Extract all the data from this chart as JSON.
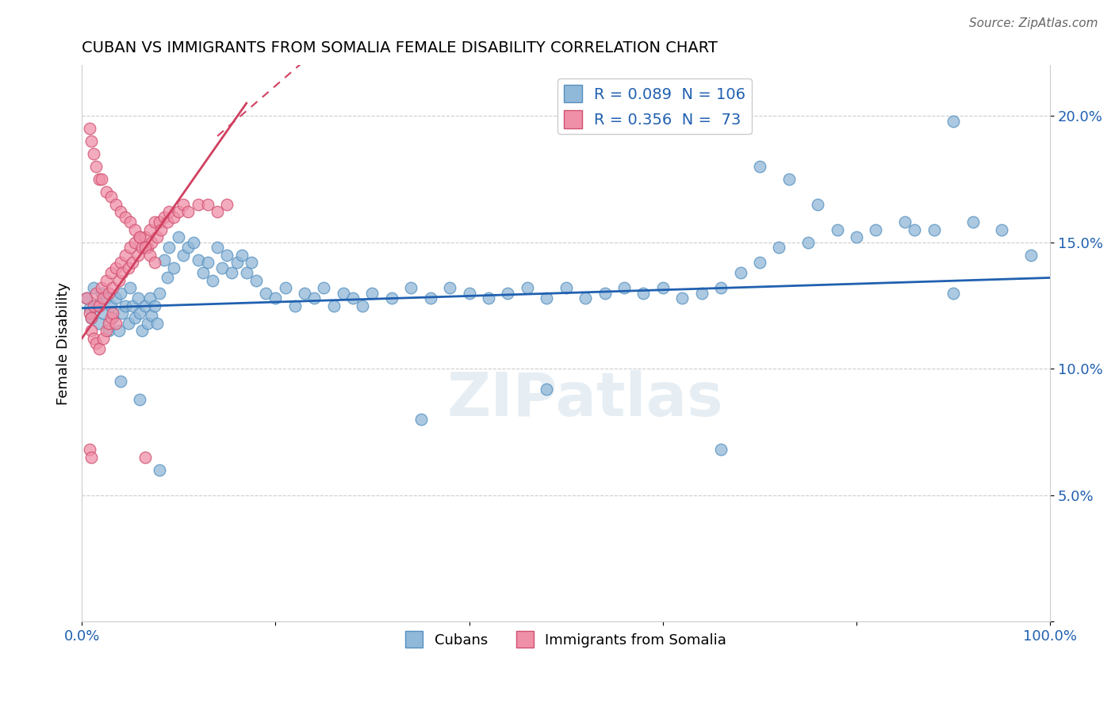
{
  "title": "CUBAN VS IMMIGRANTS FROM SOMALIA FEMALE DISABILITY CORRELATION CHART",
  "source": "Source: ZipAtlas.com",
  "ylabel": "Female Disability",
  "watermark": "ZIPatlas",
  "cubans_color": "#90b8d8",
  "cubans_edge_color": "#5590c0",
  "somalia_color": "#f090a8",
  "somalia_edge_color": "#d05070",
  "cubans_line_color": "#2060b0",
  "somalia_line_color": "#d04060",
  "xlim": [
    0.0,
    1.0
  ],
  "ylim": [
    0.0,
    0.22
  ],
  "x_ticks": [
    0.0,
    0.2,
    0.4,
    0.6,
    0.8,
    1.0
  ],
  "y_ticks": [
    0.0,
    0.05,
    0.1,
    0.15,
    0.2
  ],
  "cubans_x": [
    0.005,
    0.008,
    0.01,
    0.012,
    0.015,
    0.018,
    0.02,
    0.022,
    0.025,
    0.028,
    0.03,
    0.032,
    0.035,
    0.038,
    0.04,
    0.042,
    0.045,
    0.048,
    0.05,
    0.052,
    0.055,
    0.058,
    0.06,
    0.062,
    0.065,
    0.068,
    0.07,
    0.072,
    0.075,
    0.078,
    0.08,
    0.085,
    0.088,
    0.09,
    0.095,
    0.1,
    0.105,
    0.11,
    0.115,
    0.12,
    0.125,
    0.13,
    0.135,
    0.14,
    0.145,
    0.15,
    0.155,
    0.16,
    0.165,
    0.17,
    0.175,
    0.18,
    0.19,
    0.2,
    0.21,
    0.22,
    0.23,
    0.24,
    0.25,
    0.26,
    0.27,
    0.28,
    0.29,
    0.3,
    0.32,
    0.34,
    0.36,
    0.38,
    0.4,
    0.42,
    0.44,
    0.46,
    0.48,
    0.5,
    0.52,
    0.54,
    0.56,
    0.58,
    0.6,
    0.62,
    0.64,
    0.66,
    0.68,
    0.7,
    0.72,
    0.75,
    0.78,
    0.8,
    0.82,
    0.85,
    0.88,
    0.9,
    0.92,
    0.95,
    0.98,
    0.35,
    0.48,
    0.66,
    0.7,
    0.73,
    0.76,
    0.86,
    0.9,
    0.04,
    0.06,
    0.08
  ],
  "cubans_y": [
    0.128,
    0.124,
    0.12,
    0.132,
    0.125,
    0.118,
    0.13,
    0.122,
    0.128,
    0.115,
    0.125,
    0.12,
    0.128,
    0.115,
    0.13,
    0.122,
    0.125,
    0.118,
    0.132,
    0.125,
    0.12,
    0.128,
    0.122,
    0.115,
    0.125,
    0.118,
    0.128,
    0.121,
    0.125,
    0.118,
    0.13,
    0.143,
    0.136,
    0.148,
    0.14,
    0.152,
    0.145,
    0.148,
    0.15,
    0.143,
    0.138,
    0.142,
    0.135,
    0.148,
    0.14,
    0.145,
    0.138,
    0.142,
    0.145,
    0.138,
    0.142,
    0.135,
    0.13,
    0.128,
    0.132,
    0.125,
    0.13,
    0.128,
    0.132,
    0.125,
    0.13,
    0.128,
    0.125,
    0.13,
    0.128,
    0.132,
    0.128,
    0.132,
    0.13,
    0.128,
    0.13,
    0.132,
    0.128,
    0.132,
    0.128,
    0.13,
    0.132,
    0.13,
    0.132,
    0.128,
    0.13,
    0.132,
    0.138,
    0.142,
    0.148,
    0.15,
    0.155,
    0.152,
    0.155,
    0.158,
    0.155,
    0.198,
    0.158,
    0.155,
    0.145,
    0.08,
    0.092,
    0.068,
    0.18,
    0.175,
    0.165,
    0.155,
    0.13,
    0.095,
    0.088,
    0.06
  ],
  "somalia_x": [
    0.005,
    0.008,
    0.01,
    0.012,
    0.015,
    0.018,
    0.02,
    0.022,
    0.025,
    0.028,
    0.03,
    0.032,
    0.035,
    0.038,
    0.04,
    0.042,
    0.045,
    0.048,
    0.05,
    0.052,
    0.055,
    0.058,
    0.06,
    0.062,
    0.065,
    0.068,
    0.07,
    0.072,
    0.075,
    0.078,
    0.08,
    0.082,
    0.085,
    0.088,
    0.09,
    0.095,
    0.1,
    0.105,
    0.11,
    0.12,
    0.13,
    0.14,
    0.15,
    0.008,
    0.01,
    0.012,
    0.015,
    0.018,
    0.02,
    0.025,
    0.03,
    0.035,
    0.04,
    0.045,
    0.05,
    0.055,
    0.06,
    0.065,
    0.07,
    0.075,
    0.01,
    0.012,
    0.015,
    0.018,
    0.022,
    0.025,
    0.028,
    0.03,
    0.032,
    0.035,
    0.008,
    0.01,
    0.065
  ],
  "somalia_y": [
    0.128,
    0.122,
    0.12,
    0.125,
    0.13,
    0.125,
    0.132,
    0.128,
    0.135,
    0.13,
    0.138,
    0.132,
    0.14,
    0.135,
    0.142,
    0.138,
    0.145,
    0.14,
    0.148,
    0.142,
    0.15,
    0.145,
    0.152,
    0.148,
    0.152,
    0.148,
    0.155,
    0.15,
    0.158,
    0.152,
    0.158,
    0.155,
    0.16,
    0.158,
    0.162,
    0.16,
    0.162,
    0.165,
    0.162,
    0.165,
    0.165,
    0.162,
    0.165,
    0.195,
    0.19,
    0.185,
    0.18,
    0.175,
    0.175,
    0.17,
    0.168,
    0.165,
    0.162,
    0.16,
    0.158,
    0.155,
    0.152,
    0.148,
    0.145,
    0.142,
    0.115,
    0.112,
    0.11,
    0.108,
    0.112,
    0.115,
    0.118,
    0.12,
    0.122,
    0.118,
    0.068,
    0.065,
    0.065
  ],
  "cubans_trend_x": [
    0.0,
    1.0
  ],
  "cubans_trend_y": [
    0.124,
    0.136
  ],
  "somalia_trend_x": [
    0.0,
    0.17
  ],
  "somalia_trend_y": [
    0.112,
    0.205
  ]
}
